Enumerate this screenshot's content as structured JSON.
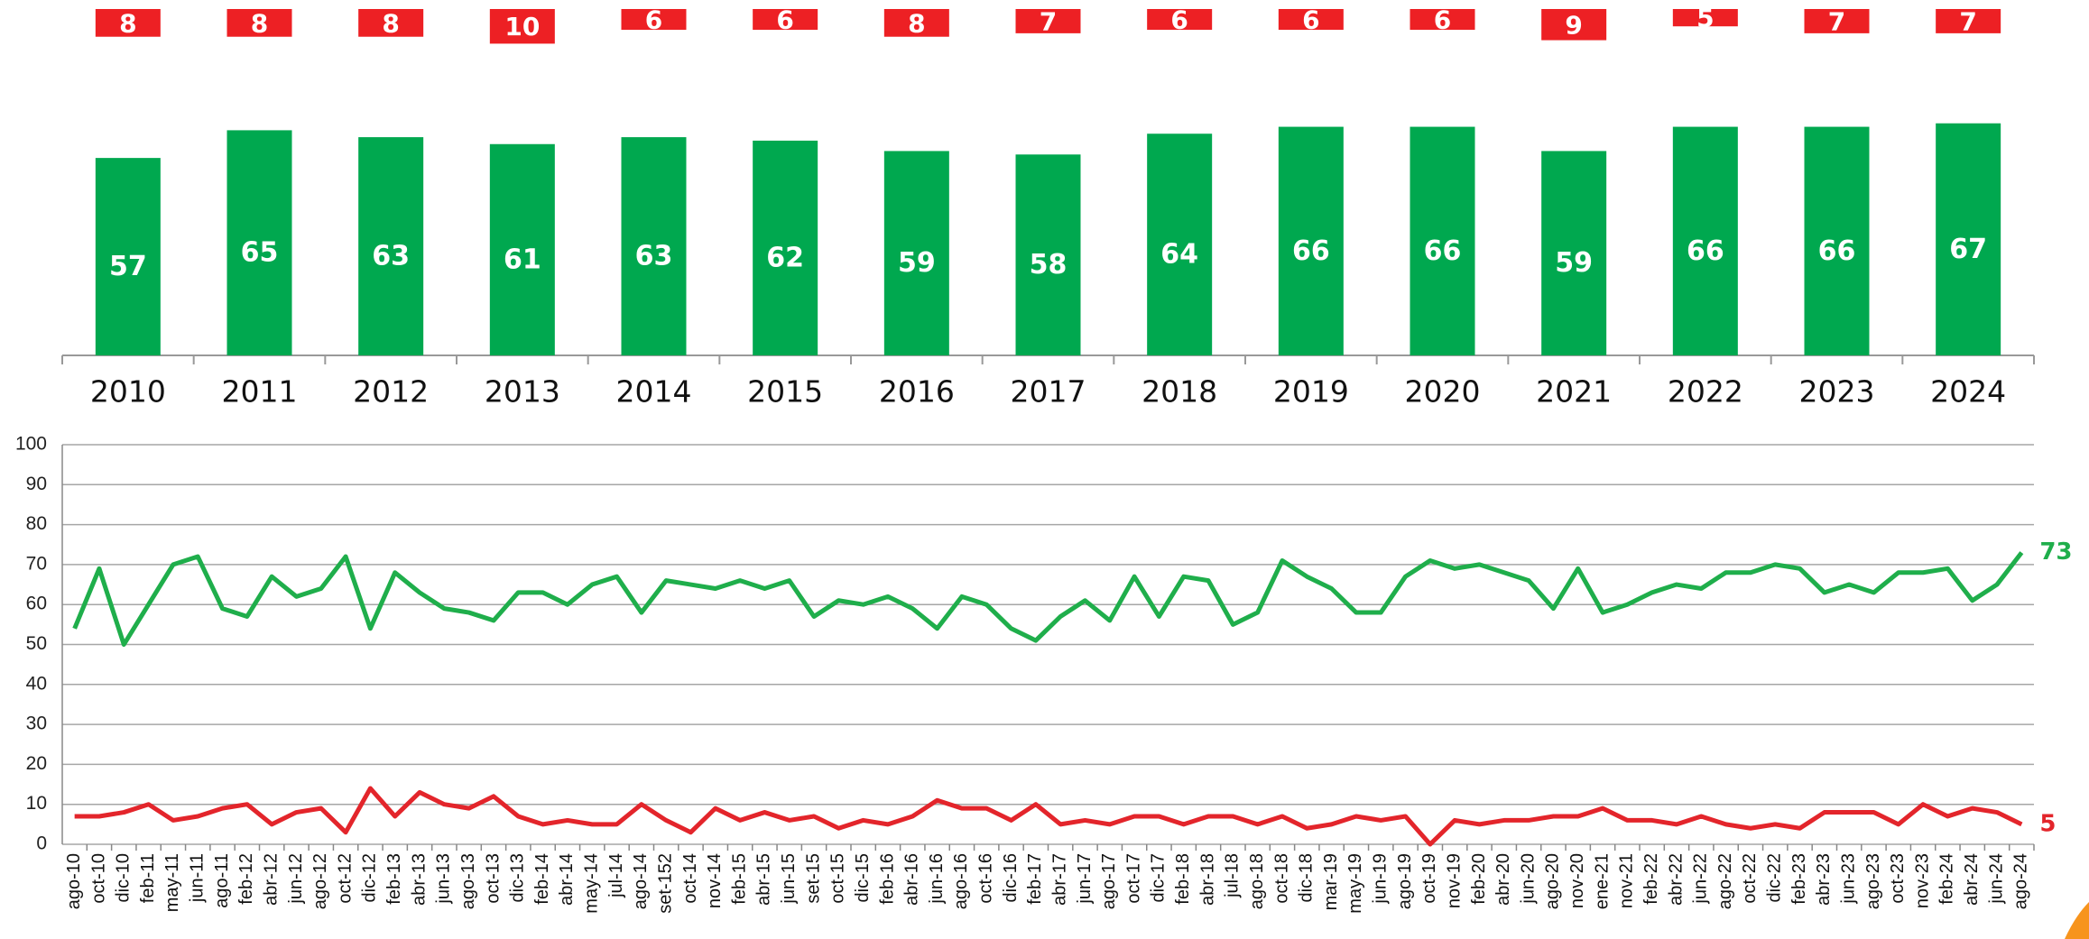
{
  "chart_data": [
    {
      "type": "bar",
      "categories": [
        "2010",
        "2011",
        "2012",
        "2013",
        "2014",
        "2015",
        "2016",
        "2017",
        "2018",
        "2019",
        "2020",
        "2021",
        "2022",
        "2023",
        "2024"
      ],
      "series": [
        {
          "color": "#00a84f",
          "values": [
            57,
            65,
            63,
            61,
            63,
            62,
            59,
            58,
            64,
            66,
            66,
            59,
            66,
            66,
            67
          ]
        },
        {
          "color": "#ed2024",
          "hang_from_top": true,
          "values": [
            8,
            8,
            8,
            10,
            6,
            6,
            8,
            7,
            6,
            6,
            6,
            9,
            5,
            7,
            7
          ]
        }
      ],
      "ylim": [
        0,
        100
      ]
    },
    {
      "type": "line",
      "categories": [
        "ago-10",
        "oct-10",
        "dic-10",
        "feb-11",
        "may-11",
        "jun-11",
        "ago-11",
        "feb-12",
        "abr-12",
        "jun-12",
        "ago-12",
        "oct-12",
        "dic-12",
        "feb-13",
        "abr-13",
        "jun-13",
        "ago-13",
        "oct-13",
        "dic-13",
        "feb-14",
        "abr-14",
        "may-14",
        "jul-14",
        "ago-14",
        "set-152",
        "oct-14",
        "nov-14",
        "feb-15",
        "abr-15",
        "jun-15",
        "set-15",
        "oct-15",
        "dic-15",
        "feb-16",
        "abr-16",
        "jun-16",
        "ago-16",
        "oct-16",
        "dic-16",
        "feb-17",
        "abr-17",
        "jun-17",
        "ago-17",
        "oct-17",
        "dic-17",
        "feb-18",
        "abr-18",
        "jul-18",
        "ago-18",
        "oct-18",
        "dic-18",
        "mar-19",
        "may-19",
        "jun-19",
        "ago-19",
        "oct-19",
        "nov-19",
        "feb-20",
        "abr-20",
        "jun-20",
        "ago-20",
        "nov-20",
        "ene-21",
        "nov-21",
        "feb-22",
        "abr-22",
        "jun-22",
        "ago-22",
        "oct-22",
        "dic-22",
        "feb-23",
        "abr-23",
        "jun-23",
        "ago-23",
        "oct-23",
        "nov-23",
        "feb-24",
        "abr-24",
        "jun-24",
        "ago-24"
      ],
      "series": [
        {
          "color": "#1fae4b",
          "values": [
            54,
            69,
            50,
            60,
            70,
            72,
            59,
            57,
            67,
            62,
            64,
            72,
            54,
            68,
            63,
            59,
            58,
            56,
            63,
            63,
            60,
            65,
            67,
            58,
            66,
            65,
            64,
            66,
            64,
            66,
            57,
            61,
            60,
            62,
            59,
            54,
            62,
            60,
            54,
            51,
            57,
            61,
            56,
            67,
            57,
            67,
            66,
            55,
            58,
            71,
            67,
            64,
            58,
            58,
            67,
            71,
            69,
            70,
            68,
            66,
            59,
            69,
            58,
            60,
            63,
            65,
            64,
            68,
            68,
            70,
            69,
            63,
            65,
            63,
            68,
            68,
            69,
            61,
            65,
            73
          ]
        },
        {
          "color": "#e3252b",
          "values": [
            7,
            7,
            8,
            10,
            6,
            7,
            9,
            10,
            5,
            8,
            9,
            3,
            14,
            7,
            13,
            10,
            9,
            12,
            7,
            5,
            6,
            5,
            5,
            10,
            6,
            3,
            9,
            6,
            8,
            6,
            7,
            4,
            6,
            5,
            7,
            11,
            9,
            9,
            6,
            10,
            5,
            6,
            5,
            7,
            7,
            5,
            7,
            7,
            5,
            7,
            4,
            5,
            7,
            6,
            7,
            0,
            6,
            5,
            6,
            6,
            7,
            7,
            9,
            6,
            6,
            5,
            7,
            5,
            4,
            5,
            4,
            8,
            8,
            8,
            5,
            10,
            7,
            9,
            8,
            5
          ]
        }
      ],
      "ylim": [
        0,
        100
      ],
      "yticks": [
        0,
        10,
        20,
        30,
        40,
        50,
        60,
        70,
        80,
        90,
        100
      ],
      "grid": true
    }
  ]
}
